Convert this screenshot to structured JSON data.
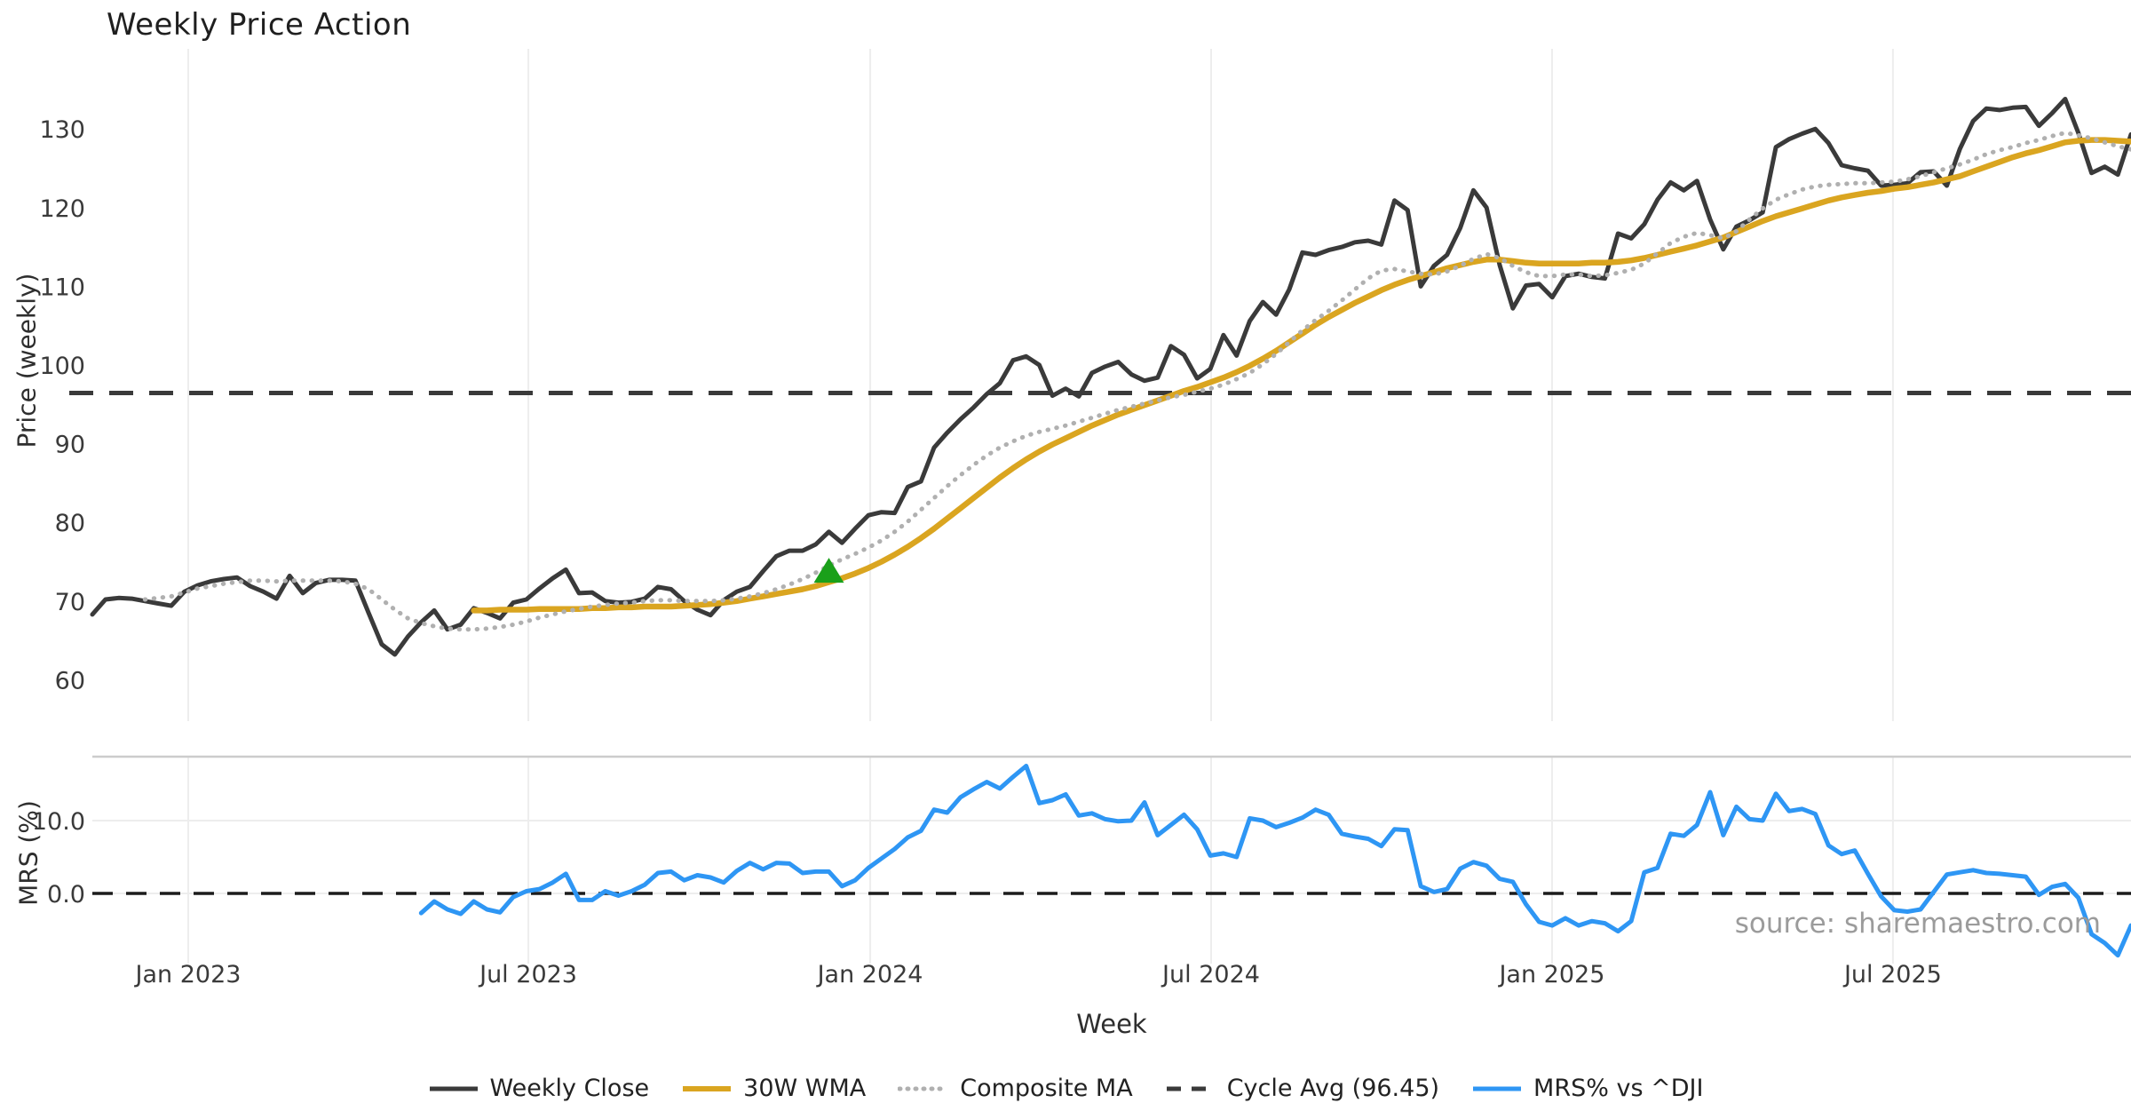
{
  "title": "Weekly Price Action",
  "source_note": "source: sharemaestro.com",
  "axes": {
    "price": {
      "label": "Price (weekly)",
      "ticks": [
        60,
        70,
        80,
        90,
        100,
        110,
        120,
        130
      ]
    },
    "mrs": {
      "label": "MRS (%)",
      "ticks": [
        {
          "value": 0,
          "label": "0.0"
        },
        {
          "value": 10,
          "label": "10.0"
        }
      ]
    },
    "x": {
      "label": "Week",
      "ticks": [
        "Jan 2023",
        "Jul 2023",
        "Jan 2024",
        "Jul 2024",
        "Jan 2025",
        "Jul 2025"
      ]
    }
  },
  "colors": {
    "weekly_close": "#3a3a3a",
    "wma_30w": "#DAA520",
    "composite_ma": "#b0b0b0",
    "cycle_avg": "#3a3a3a",
    "mrs_line": "#2E96F4",
    "buy_marker": "#1aa01a",
    "gridline": "#ededed",
    "panel_border": "#cccccc",
    "tick_text": "#3a3a3a",
    "zero_dash": "#1c1c1c"
  },
  "legend": [
    {
      "label": "Weekly Close",
      "color": "#3a3a3a",
      "style": "solid",
      "width": 5
    },
    {
      "label": "30W WMA",
      "color": "#DAA520",
      "style": "solid",
      "width": 6
    },
    {
      "label": "Composite MA",
      "color": "#b0b0b0",
      "style": "dotted",
      "width": 5
    },
    {
      "label": "Cycle Avg (96.45)",
      "color": "#3a3a3a",
      "style": "dashed",
      "width": 5
    },
    {
      "label": "MRS% vs ^DJI",
      "color": "#2E96F4",
      "style": "solid",
      "width": 5
    }
  ],
  "chart_data": {
    "type": "line",
    "panels": [
      {
        "name": "price",
        "ylabel": "Price (weekly)",
        "ylim": [
          58,
          135.5
        ],
        "yticks": [
          60,
          70,
          80,
          90,
          100,
          110,
          120,
          130
        ],
        "grid": "vertical-only"
      },
      {
        "name": "mrs",
        "ylabel": "MRS (%)",
        "ylim": [
          -9.8,
          18.8
        ],
        "yticks": [
          0,
          10
        ],
        "grid": "both-light"
      }
    ],
    "x_unit": "week_index",
    "n_weeks": 156,
    "x_tick_positions": [
      7.29,
      33.15,
      59.14,
      85.06,
      110.98,
      136.9
    ],
    "x_tick_labels": [
      "Jan 2023",
      "Jul 2023",
      "Jan 2024",
      "Jul 2024",
      "Jan 2025",
      "Jul 2025"
    ],
    "cycle_avg": 96.45,
    "legend_position": "bottom-center",
    "series": [
      {
        "name": "Weekly Close",
        "panel": "price",
        "color": "#3a3a3a",
        "style": "solid",
        "width": 5,
        "values": [
          68.3,
          70.2,
          70.4,
          70.3,
          70.0,
          69.7,
          69.4,
          71.2,
          72.0,
          72.5,
          72.8,
          73.0,
          71.9,
          71.2,
          70.3,
          73.2,
          71.0,
          72.3,
          72.7,
          72.7,
          72.6,
          68.5,
          64.5,
          63.2,
          65.5,
          67.3,
          68.8,
          66.4,
          67.0,
          69.1,
          68.5,
          67.8,
          69.8,
          70.2,
          71.6,
          72.9,
          74.0,
          71.0,
          71.1,
          70.0,
          69.8,
          69.9,
          70.3,
          71.8,
          71.5,
          70.0,
          68.9,
          68.2,
          70.1,
          71.2,
          71.8,
          73.8,
          75.7,
          76.4,
          76.4,
          77.2,
          78.8,
          77.4,
          79.2,
          80.9,
          81.3,
          81.2,
          84.5,
          85.2,
          89.5,
          91.4,
          93.1,
          94.6,
          96.3,
          97.7,
          100.6,
          101.1,
          100.0,
          96.1,
          97.0,
          96.0,
          99.0,
          99.8,
          100.4,
          98.8,
          98.0,
          98.4,
          102.4,
          101.3,
          98.3,
          99.5,
          103.8,
          101.2,
          105.6,
          108.0,
          106.4,
          109.6,
          114.3,
          114.0,
          114.6,
          115.0,
          115.6,
          115.8,
          115.3,
          120.9,
          119.7,
          110.0,
          112.6,
          114.0,
          117.4,
          122.2,
          120.0,
          112.7,
          107.2,
          110.1,
          110.3,
          108.6,
          111.3,
          111.6,
          111.2,
          111.0,
          116.7,
          116.1,
          117.9,
          121.0,
          123.2,
          122.2,
          123.4,
          118.5,
          114.7,
          117.6,
          118.4,
          119.4,
          127.7,
          128.7,
          129.4,
          130.0,
          128.2,
          125.4,
          125.0,
          124.7,
          122.8,
          122.9,
          123.1,
          124.5,
          124.6,
          122.8,
          127.5,
          131.0,
          132.6,
          132.4,
          132.7,
          132.8,
          130.4,
          132.0,
          133.8,
          129.5,
          124.4,
          125.2,
          124.2,
          129.3
        ]
      },
      {
        "name": "30W WMA",
        "panel": "price",
        "color": "#DAA520",
        "style": "solid",
        "width": 6.5,
        "values": [
          null,
          null,
          null,
          null,
          null,
          null,
          null,
          null,
          null,
          null,
          null,
          null,
          null,
          null,
          null,
          null,
          null,
          null,
          null,
          null,
          null,
          null,
          null,
          null,
          null,
          null,
          null,
          null,
          null,
          68.8,
          68.8,
          68.9,
          68.9,
          68.9,
          69.0,
          69.0,
          69.0,
          69.0,
          69.1,
          69.1,
          69.2,
          69.2,
          69.3,
          69.3,
          69.3,
          69.4,
          69.5,
          69.6,
          69.8,
          70.0,
          70.3,
          70.6,
          70.9,
          71.2,
          71.5,
          71.9,
          72.4,
          72.9,
          73.5,
          74.2,
          75.0,
          75.9,
          76.9,
          78.0,
          79.2,
          80.5,
          81.8,
          83.1,
          84.4,
          85.7,
          86.9,
          88.0,
          89.0,
          89.9,
          90.7,
          91.5,
          92.3,
          93.0,
          93.7,
          94.3,
          94.9,
          95.5,
          96.1,
          96.7,
          97.2,
          97.8,
          98.4,
          99.1,
          99.9,
          100.8,
          101.8,
          102.9,
          104.0,
          105.1,
          106.1,
          107.0,
          107.9,
          108.7,
          109.5,
          110.2,
          110.8,
          111.3,
          111.8,
          112.3,
          112.7,
          113.1,
          113.4,
          113.4,
          113.2,
          113.0,
          112.9,
          112.9,
          112.9,
          112.9,
          113.0,
          113.0,
          113.1,
          113.3,
          113.6,
          114.0,
          114.4,
          114.8,
          115.2,
          115.7,
          116.2,
          116.9,
          117.6,
          118.3,
          118.9,
          119.4,
          119.9,
          120.4,
          120.9,
          121.3,
          121.6,
          121.9,
          122.1,
          122.4,
          122.6,
          122.9,
          123.2,
          123.6,
          124.0,
          124.6,
          125.2,
          125.8,
          126.4,
          126.9,
          127.3,
          127.8,
          128.3,
          128.5,
          128.6,
          128.6,
          128.5,
          128.4
        ]
      },
      {
        "name": "Composite MA",
        "panel": "price",
        "color": "#b0b0b0",
        "style": "dotted",
        "width": 5,
        "values": [
          null,
          null,
          null,
          null,
          70.2,
          70.4,
          70.6,
          71.1,
          71.6,
          71.9,
          72.2,
          72.4,
          72.6,
          72.6,
          72.5,
          72.6,
          72.6,
          72.6,
          72.6,
          72.5,
          72.2,
          71.5,
          70.2,
          68.9,
          67.8,
          67.2,
          66.8,
          66.5,
          66.4,
          66.4,
          66.5,
          66.7,
          67.0,
          67.4,
          67.9,
          68.3,
          68.7,
          69.0,
          69.3,
          69.5,
          69.7,
          69.8,
          70.0,
          70.1,
          70.1,
          70.0,
          70.0,
          70.0,
          70.1,
          70.3,
          70.6,
          71.0,
          71.5,
          72.1,
          72.8,
          73.6,
          74.5,
          75.3,
          76.0,
          76.8,
          77.7,
          78.8,
          80.1,
          81.6,
          83.1,
          84.6,
          86.0,
          87.3,
          88.5,
          89.5,
          90.3,
          91.0,
          91.5,
          91.9,
          92.3,
          92.8,
          93.3,
          93.8,
          94.3,
          94.7,
          95.1,
          95.5,
          95.9,
          96.2,
          96.6,
          97.0,
          97.5,
          98.2,
          99.0,
          100.1,
          101.4,
          102.9,
          104.4,
          105.7,
          106.9,
          108.2,
          109.6,
          111.0,
          112.0,
          112.2,
          111.9,
          111.6,
          111.5,
          111.9,
          112.6,
          113.5,
          114.1,
          113.6,
          112.6,
          111.8,
          111.3,
          111.3,
          111.5,
          111.5,
          111.3,
          111.4,
          111.7,
          112.1,
          112.9,
          114.2,
          115.5,
          116.3,
          116.8,
          116.5,
          116.1,
          117.0,
          118.5,
          119.9,
          121.0,
          121.7,
          122.3,
          122.7,
          122.9,
          123.0,
          123.1,
          123.1,
          123.2,
          123.3,
          123.6,
          124.0,
          124.5,
          125.0,
          125.5,
          126.1,
          126.8,
          127.3,
          127.7,
          128.2,
          128.6,
          129.1,
          129.5,
          129.2,
          128.8,
          128.3,
          127.8,
          127.4
        ]
      },
      {
        "name": "MRS% vs ^DJI",
        "panel": "mrs",
        "color": "#2E96F4",
        "style": "solid",
        "width": 5,
        "values": [
          null,
          null,
          null,
          null,
          null,
          null,
          null,
          null,
          null,
          null,
          null,
          null,
          null,
          null,
          null,
          null,
          null,
          null,
          null,
          null,
          null,
          null,
          null,
          null,
          null,
          -2.7,
          -1.1,
          -2.2,
          -2.8,
          -1.1,
          -2.2,
          -2.6,
          -0.5,
          0.3,
          0.6,
          1.5,
          2.7,
          -0.9,
          -0.9,
          0.3,
          -0.3,
          0.3,
          1.2,
          2.8,
          3.0,
          1.8,
          2.5,
          2.2,
          1.5,
          3.1,
          4.2,
          3.3,
          4.2,
          4.1,
          2.8,
          3.0,
          3.0,
          1.0,
          1.8,
          3.5,
          4.8,
          6.1,
          7.7,
          8.6,
          11.5,
          11.1,
          13.2,
          14.3,
          15.3,
          14.4,
          16.0,
          17.5,
          12.4,
          12.8,
          13.6,
          10.7,
          11.0,
          10.2,
          9.9,
          10.0,
          12.5,
          8.0,
          9.4,
          10.8,
          8.8,
          5.2,
          5.5,
          5.0,
          10.3,
          10.0,
          9.1,
          9.7,
          10.4,
          11.5,
          10.8,
          8.2,
          7.8,
          7.5,
          6.5,
          8.8,
          8.7,
          1.0,
          0.2,
          0.6,
          3.4,
          4.3,
          3.8,
          2.0,
          1.6,
          -1.5,
          -3.9,
          -4.4,
          -3.4,
          -4.4,
          -3.8,
          -4.1,
          -5.2,
          -3.8,
          2.9,
          3.5,
          8.2,
          7.9,
          9.4,
          13.9,
          8.0,
          11.9,
          10.2,
          10.0,
          13.7,
          11.3,
          11.6,
          10.9,
          6.6,
          5.4,
          5.9,
          2.7,
          -0.4,
          -2.3,
          -2.5,
          -2.2,
          0.2,
          2.6,
          2.9,
          3.2,
          2.8,
          2.7,
          2.5,
          2.3,
          -0.2,
          0.9,
          1.3,
          -0.6,
          -5.6,
          -6.8,
          -8.5,
          -4.4
        ]
      }
    ],
    "markers": [
      {
        "type": "triangle-up",
        "meaning": "buy-signal",
        "color": "#1aa01a",
        "panel": "price",
        "week_index": 56,
        "value": 73.8
      }
    ]
  }
}
